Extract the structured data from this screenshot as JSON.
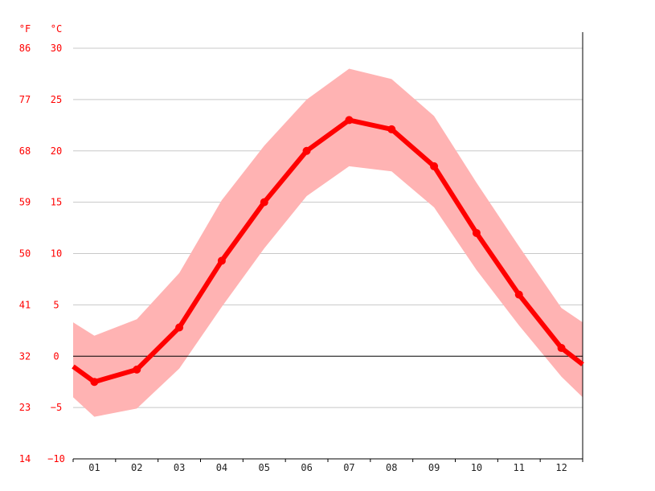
{
  "chart_data": {
    "type": "line",
    "units": {
      "fahrenheit": "°F",
      "celsius": "°C"
    },
    "categories": [
      "01",
      "02",
      "03",
      "04",
      "05",
      "06",
      "07",
      "08",
      "09",
      "10",
      "11",
      "12"
    ],
    "series": [
      {
        "values": [
          -2.5,
          -1.3,
          2.8,
          9.3,
          15.0,
          20.0,
          23.0,
          22.1,
          18.5,
          12.0,
          6.0,
          0.8
        ]
      }
    ],
    "band": {
      "upper": [
        2.0,
        3.6,
        8.1,
        15.2,
        20.5,
        25.0,
        28.0,
        27.0,
        23.4,
        16.9,
        10.7,
        4.7
      ],
      "lower": [
        -5.9,
        -5.1,
        -1.2,
        4.8,
        10.5,
        15.6,
        18.5,
        18.0,
        14.5,
        8.4,
        3.0,
        -2.0
      ]
    },
    "edge_values": {
      "left": -1.0,
      "left_upper": 3.3,
      "left_lower": -4.0,
      "right": -0.8,
      "right_upper": 3.3,
      "right_lower": -4.0
    },
    "ylim": [
      -10,
      30
    ],
    "yticks_c": [
      "30",
      "25",
      "20",
      "15",
      "10",
      "5",
      "0",
      "−5",
      "−10"
    ],
    "yticks_f": [
      "86",
      "77",
      "68",
      "59",
      "50",
      "41",
      "32",
      "23",
      "14"
    ],
    "grid": true,
    "zero_line": true,
    "colors": {
      "line": "#ff0000",
      "band": "#ffb3b3",
      "grid": "#c8c8c8",
      "axis": "#000000",
      "text": "#ff0000",
      "xtext": "#222222"
    }
  }
}
